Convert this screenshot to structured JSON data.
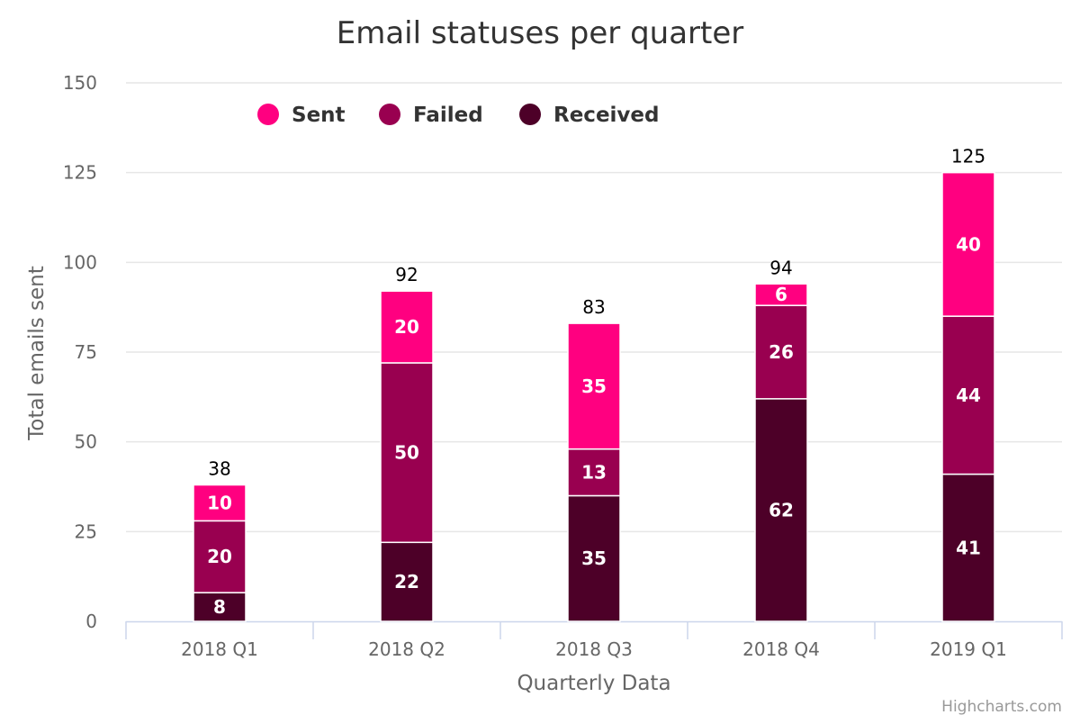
{
  "chart_data": {
    "type": "bar",
    "stacked": true,
    "title": "Email statuses per quarter",
    "xlabel": "Quarterly Data",
    "ylabel": "Total emails sent",
    "categories": [
      "2018 Q1",
      "2018 Q2",
      "2018 Q3",
      "2018 Q4",
      "2019 Q1"
    ],
    "ylim": [
      0,
      150
    ],
    "yticks": [
      0,
      25,
      50,
      75,
      100,
      125,
      150
    ],
    "grid": true,
    "legend_position": "top",
    "series": [
      {
        "name": "Sent",
        "color": "#ff0080",
        "values": [
          10,
          20,
          35,
          6,
          40
        ]
      },
      {
        "name": "Failed",
        "color": "#990050",
        "values": [
          20,
          50,
          13,
          26,
          44
        ]
      },
      {
        "name": "Received",
        "color": "#4d0028",
        "values": [
          8,
          22,
          35,
          62,
          41
        ]
      }
    ],
    "stack_totals": [
      38,
      92,
      83,
      94,
      125
    ]
  },
  "credits": "Highcharts.com"
}
